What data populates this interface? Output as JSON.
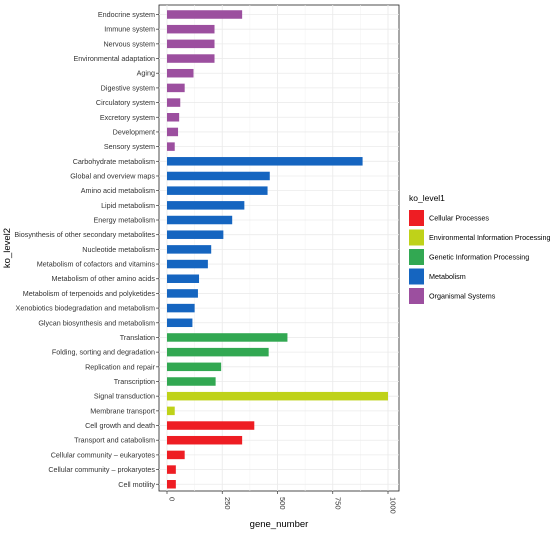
{
  "chart_data": {
    "type": "bar",
    "orientation": "horizontal",
    "xlabel": "gene_number",
    "ylabel": "ko_level2",
    "xlim": [
      0,
      1000
    ],
    "xticks": [
      "0",
      "250",
      "500",
      "750",
      "1000"
    ],
    "xtick_values": [
      0,
      250,
      500,
      750,
      1000
    ],
    "grid": true,
    "legend": {
      "title": "ko_level1",
      "position": "right",
      "entries": [
        {
          "name": "Cellular Processes",
          "color": "#ee1d23"
        },
        {
          "name": "Environmental Information Processing",
          "color": "#bfd219"
        },
        {
          "name": "Genetic Information Processing",
          "color": "#32a852"
        },
        {
          "name": "Metabolism",
          "color": "#1565c0"
        },
        {
          "name": "Organismal Systems",
          "color": "#9c4f9f"
        }
      ]
    },
    "categories": [
      {
        "name": "Endocrine system",
        "value": 340,
        "group": 4
      },
      {
        "name": "Immune system",
        "value": 215,
        "group": 4
      },
      {
        "name": "Nervous system",
        "value": 215,
        "group": 4
      },
      {
        "name": "Environmental adaptation",
        "value": 215,
        "group": 4
      },
      {
        "name": "Aging",
        "value": 120,
        "group": 4
      },
      {
        "name": "Digestive system",
        "value": 80,
        "group": 4
      },
      {
        "name": "Circulatory system",
        "value": 60,
        "group": 4
      },
      {
        "name": "Excretory system",
        "value": 55,
        "group": 4
      },
      {
        "name": "Development",
        "value": 50,
        "group": 4
      },
      {
        "name": "Sensory system",
        "value": 35,
        "group": 4
      },
      {
        "name": "Carbohydrate metabolism",
        "value": 885,
        "group": 3
      },
      {
        "name": "Global and overview maps",
        "value": 465,
        "group": 3
      },
      {
        "name": "Amino acid metabolism",
        "value": 455,
        "group": 3
      },
      {
        "name": "Lipid metabolism",
        "value": 350,
        "group": 3
      },
      {
        "name": "Energy metabolism",
        "value": 295,
        "group": 3
      },
      {
        "name": "Biosynthesis of other secondary metabolites",
        "value": 255,
        "group": 3
      },
      {
        "name": "Nucleotide metabolism",
        "value": 200,
        "group": 3
      },
      {
        "name": "Metabolism of cofactors and vitamins",
        "value": 185,
        "group": 3
      },
      {
        "name": "Metabolism of other amino acids",
        "value": 145,
        "group": 3
      },
      {
        "name": "Metabolism of terpenoids and polyketides",
        "value": 140,
        "group": 3
      },
      {
        "name": "Xenobiotics biodegradation and metabolism",
        "value": 125,
        "group": 3
      },
      {
        "name": "Glycan biosynthesis and metabolism",
        "value": 115,
        "group": 3
      },
      {
        "name": "Translation",
        "value": 545,
        "group": 2
      },
      {
        "name": "Folding, sorting and degradation",
        "value": 460,
        "group": 2
      },
      {
        "name": "Replication and repair",
        "value": 245,
        "group": 2
      },
      {
        "name": "Transcription",
        "value": 220,
        "group": 2
      },
      {
        "name": "Signal transduction",
        "value": 1000,
        "group": 1
      },
      {
        "name": "Membrane transport",
        "value": 35,
        "group": 1
      },
      {
        "name": "Cell growth and death",
        "value": 395,
        "group": 0
      },
      {
        "name": "Transport and catabolism",
        "value": 340,
        "group": 0
      },
      {
        "name": "Cellular community – eukaryotes",
        "value": 80,
        "group": 0
      },
      {
        "name": "Cellular community – prokaryotes",
        "value": 40,
        "group": 0
      },
      {
        "name": "Cell motility",
        "value": 40,
        "group": 0
      }
    ]
  }
}
